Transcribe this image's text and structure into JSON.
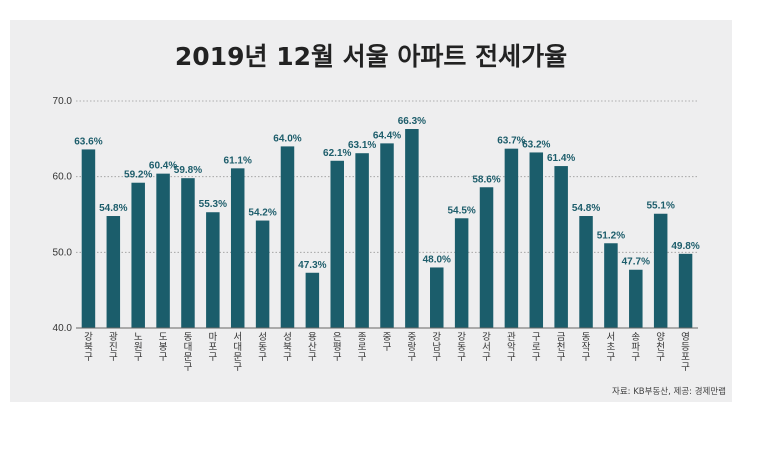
{
  "chart_data": {
    "type": "bar",
    "title": "2019년 12월 서울 아파트 전세가율",
    "source": "자료: KB부동산, 제공: 경제만랩",
    "ylim": [
      40,
      70
    ],
    "yticks": [
      "40.0",
      "50.0",
      "60.0",
      "70.0"
    ],
    "grid": true,
    "bar_color": "#1b5d6b",
    "label_color": "#1d5d6b",
    "categories": [
      "강북구",
      "광진구",
      "노원구",
      "도봉구",
      "동대문구",
      "마포구",
      "서대문구",
      "성동구",
      "성북구",
      "용산구",
      "은평구",
      "종로구",
      "중구",
      "중랑구",
      "강남구",
      "강동구",
      "강서구",
      "관악구",
      "구로구",
      "금천구",
      "동작구",
      "서초구",
      "송파구",
      "양천구",
      "영등포구"
    ],
    "values": [
      63.6,
      54.8,
      59.2,
      60.4,
      59.8,
      55.3,
      61.1,
      54.2,
      64.0,
      47.3,
      62.1,
      63.1,
      64.4,
      66.3,
      48.0,
      54.5,
      58.6,
      63.7,
      63.2,
      61.4,
      54.8,
      51.2,
      47.7,
      55.1,
      49.8
    ],
    "data_labels": [
      "63.6%",
      "54.8%",
      "59.2%",
      "60.4%",
      "59.8%",
      "55.3%",
      "61.1%",
      "54.2%",
      "64.0%",
      "47.3%",
      "62.1%",
      "63.1%",
      "64.4%",
      "66.3%",
      "48.0%",
      "54.5%",
      "58.6%",
      "63.7%",
      "63.2%",
      "61.4%",
      "54.8%",
      "51.2%",
      "47.7%",
      "55.1%",
      "49.8%"
    ]
  }
}
